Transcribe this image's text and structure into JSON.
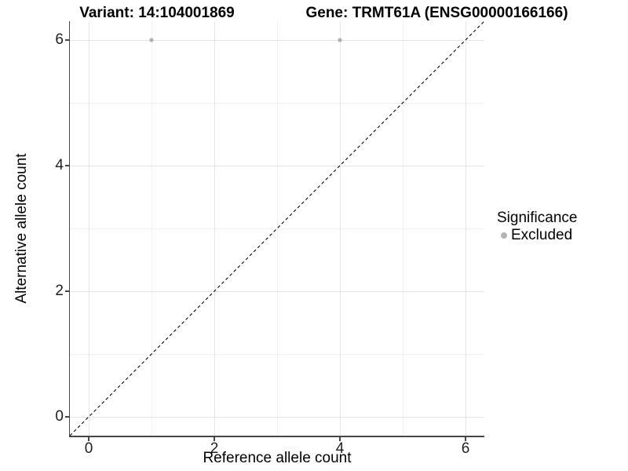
{
  "figure": {
    "title_left": "Variant: 14:104001869",
    "title_right": "Gene: TRMT61A (ENSG00000166166)"
  },
  "chart_data": {
    "type": "scatter",
    "title": "Variant: 14:104001869 — Gene: TRMT61A (ENSG00000166166)",
    "xlabel": "Reference allele count",
    "ylabel": "Alternative allele count",
    "xlim": [
      -0.3,
      6.3
    ],
    "ylim": [
      -0.3,
      6.3
    ],
    "x_ticks": [
      0,
      2,
      4,
      6
    ],
    "y_ticks": [
      0,
      2,
      4,
      6
    ],
    "minor_gridlines": [
      1,
      3,
      5
    ],
    "grid": "major+minor",
    "series": [
      {
        "name": "Excluded",
        "marker": "circle",
        "color": "#b2b2b2",
        "points": [
          {
            "x": 1,
            "y": 6
          },
          {
            "x": 4,
            "y": 6
          }
        ]
      }
    ],
    "reference_line": {
      "description": "identity line y=x",
      "style": "dashed",
      "color": "#000000",
      "from": [
        -0.3,
        -0.3
      ],
      "to": [
        6.3,
        6.3
      ]
    },
    "legend": {
      "title": "Significance",
      "position": "right",
      "items": [
        {
          "label": "Excluded",
          "color": "#b2b2b2",
          "marker": "circle"
        }
      ]
    }
  },
  "colors": {
    "background": "#ffffff",
    "axis_line": "#474747",
    "tick_mark": "#474747",
    "major_grid": "#e4e4e4",
    "minor_grid": "#f0f0f0",
    "text": "#000000",
    "point": "#b2b2b2"
  }
}
